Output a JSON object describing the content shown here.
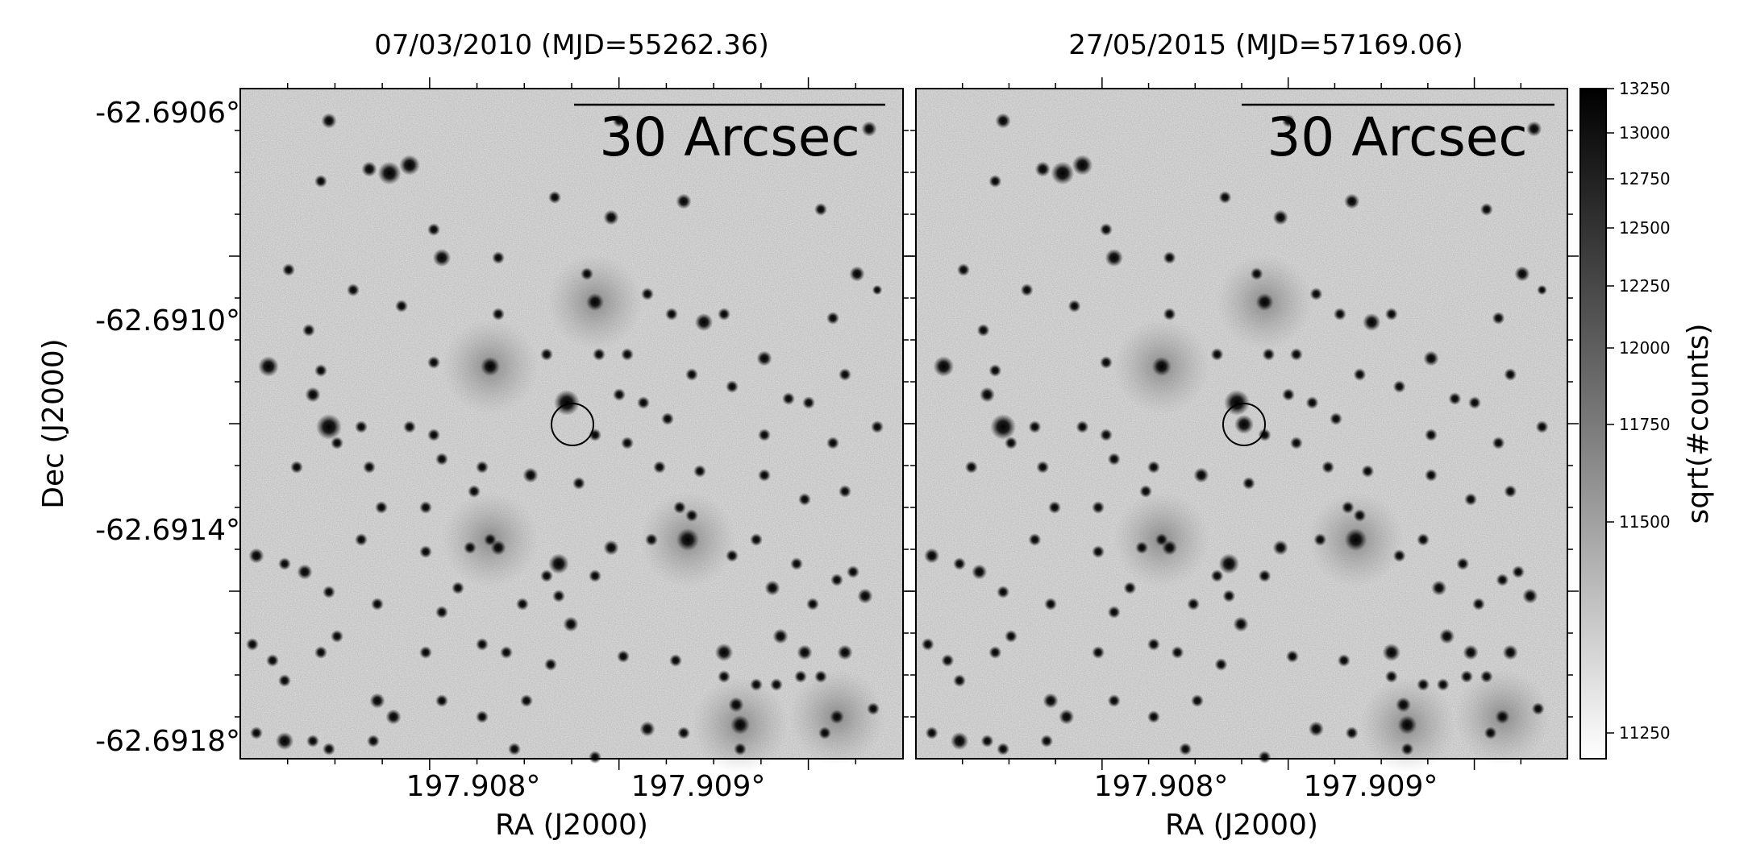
{
  "panels": [
    {
      "title": "07/03/2010 (MJD=55262.36)",
      "scale_bar_label": "30 Arcsec",
      "x_tick_labels": [
        "197.908°",
        "197.909°"
      ],
      "x_axis_label": "RA (J2000)",
      "y_tick_labels": [
        "-62.6906°",
        "-62.6910°",
        "-62.6914°",
        "-62.6918°"
      ],
      "y_axis_label": "Dec (J2000)",
      "target_visible": false
    },
    {
      "title": "27/05/2015 (MJD=57169.06)",
      "scale_bar_label": "30 Arcsec",
      "x_tick_labels": [
        "197.908°",
        "197.909°"
      ],
      "x_axis_label": "RA (J2000)",
      "target_visible": true
    }
  ],
  "colorbar": {
    "label": "sqrt(#counts)",
    "tick_labels": [
      "13250",
      "13000",
      "12750",
      "12500",
      "12250",
      "12000",
      "11750",
      "11500",
      "11250"
    ],
    "colormap": "gray_r"
  },
  "colors": {
    "frame": "#000000",
    "sky": "#e6e6e6",
    "star": "#0a0a0a"
  }
}
